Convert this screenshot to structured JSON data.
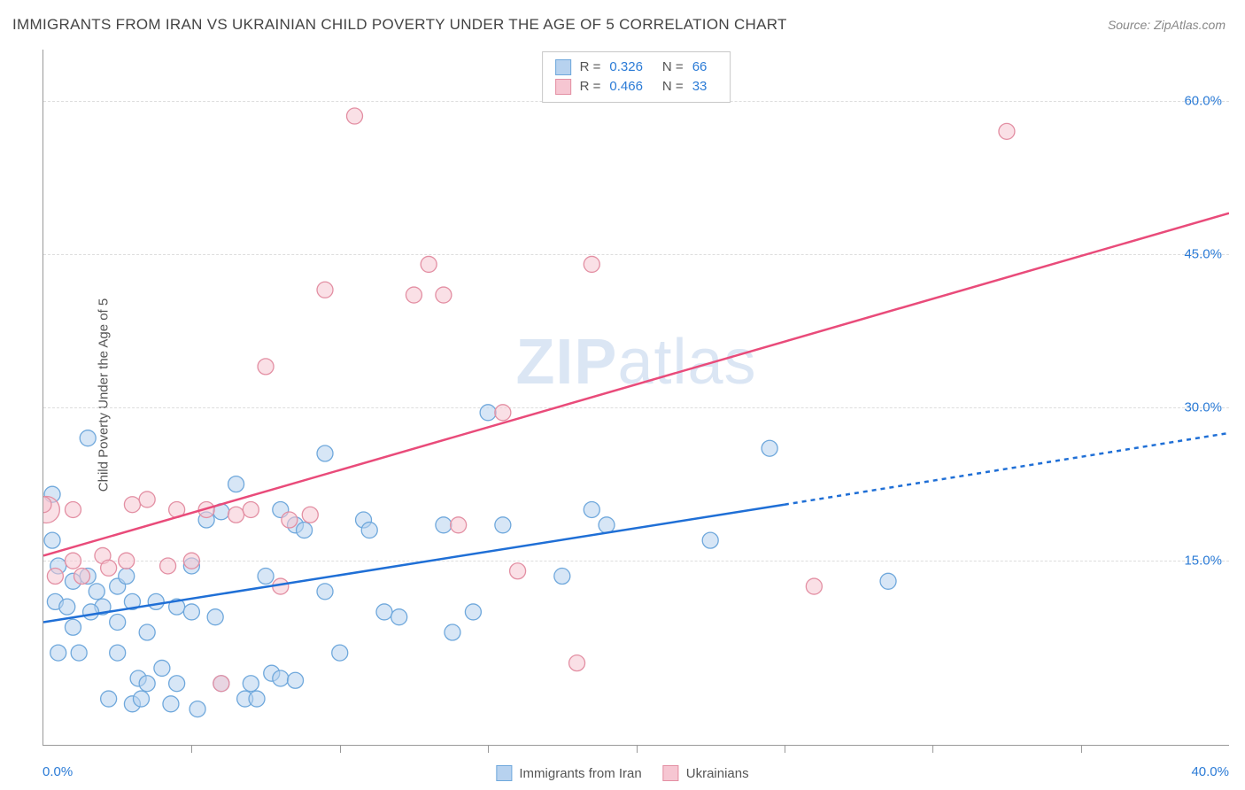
{
  "title": "IMMIGRANTS FROM IRAN VS UKRAINIAN CHILD POVERTY UNDER THE AGE OF 5 CORRELATION CHART",
  "source": "Source: ZipAtlas.com",
  "ylabel": "Child Poverty Under the Age of 5",
  "watermark_bold": "ZIP",
  "watermark_light": "atlas",
  "chart": {
    "type": "scatter",
    "xlim": [
      0,
      40
    ],
    "ylim": [
      -3,
      65
    ],
    "x_tick_step": 5,
    "y_gridlines": [
      15,
      30,
      45,
      60
    ],
    "x_min_label": "0.0%",
    "x_max_label": "40.0%",
    "y_tick_labels": [
      "15.0%",
      "30.0%",
      "45.0%",
      "60.0%"
    ],
    "axis_label_color": "#2b7bd6",
    "background_color": "#ffffff",
    "grid_color": "#dddddd",
    "axis_color": "#999999",
    "marker_radius": 9,
    "marker_radius_large": 15,
    "series": [
      {
        "name": "Immigrants from Iran",
        "fill": "#b7d2ef",
        "stroke": "#6fa8dc",
        "fill_opacity": 0.55,
        "stroke_width": 1.3,
        "trend": {
          "x1": 0,
          "y1": 9.0,
          "x2_solid": 25,
          "y2_solid": 20.5,
          "x2": 40,
          "y2": 27.5,
          "color": "#1f6fd6",
          "width": 2.5,
          "dash": "5,5"
        },
        "stats": {
          "R": "0.326",
          "N": "66"
        },
        "points": [
          [
            0.3,
            21.5
          ],
          [
            0.3,
            17.0
          ],
          [
            0.5,
            14.5
          ],
          [
            0.4,
            11.0
          ],
          [
            0.8,
            10.5
          ],
          [
            0.5,
            6.0
          ],
          [
            1.0,
            13.0
          ],
          [
            1.5,
            27.0
          ],
          [
            1.0,
            8.5
          ],
          [
            1.2,
            6.0
          ],
          [
            1.5,
            13.5
          ],
          [
            1.8,
            12.0
          ],
          [
            2.0,
            10.5
          ],
          [
            1.6,
            10.0
          ],
          [
            2.2,
            1.5
          ],
          [
            2.5,
            12.5
          ],
          [
            2.5,
            9.0
          ],
          [
            2.5,
            6.0
          ],
          [
            3.0,
            1.0
          ],
          [
            2.8,
            13.5
          ],
          [
            3.0,
            11.0
          ],
          [
            3.2,
            3.5
          ],
          [
            3.3,
            1.5
          ],
          [
            3.5,
            8.0
          ],
          [
            3.5,
            3.0
          ],
          [
            3.8,
            11.0
          ],
          [
            4.0,
            4.5
          ],
          [
            4.3,
            1.0
          ],
          [
            4.5,
            10.5
          ],
          [
            4.5,
            3.0
          ],
          [
            5.0,
            14.5
          ],
          [
            5.0,
            10.0
          ],
          [
            5.2,
            0.5
          ],
          [
            5.5,
            19.0
          ],
          [
            5.8,
            9.5
          ],
          [
            6.0,
            19.8
          ],
          [
            6.0,
            3.0
          ],
          [
            6.5,
            22.5
          ],
          [
            6.8,
            1.5
          ],
          [
            7.0,
            3.0
          ],
          [
            7.7,
            4.0
          ],
          [
            7.2,
            1.5
          ],
          [
            7.5,
            13.5
          ],
          [
            8.0,
            3.5
          ],
          [
            8.5,
            18.5
          ],
          [
            8.5,
            3.3
          ],
          [
            8.8,
            18.0
          ],
          [
            9.5,
            25.5
          ],
          [
            9.5,
            12.0
          ],
          [
            10.0,
            6.0
          ],
          [
            10.8,
            19.0
          ],
          [
            11.0,
            18.0
          ],
          [
            11.5,
            10.0
          ],
          [
            12.0,
            9.5
          ],
          [
            13.5,
            18.5
          ],
          [
            13.8,
            8.0
          ],
          [
            14.5,
            10.0
          ],
          [
            15.0,
            29.5
          ],
          [
            15.5,
            18.5
          ],
          [
            17.5,
            13.5
          ],
          [
            18.5,
            20.0
          ],
          [
            19.0,
            18.5
          ],
          [
            22.5,
            17.0
          ],
          [
            24.5,
            26.0
          ],
          [
            28.5,
            13.0
          ],
          [
            8.0,
            20.0
          ]
        ]
      },
      {
        "name": "Ukrainians",
        "fill": "#f6c6d2",
        "stroke": "#e38fa3",
        "fill_opacity": 0.55,
        "stroke_width": 1.3,
        "trend": {
          "x1": 0,
          "y1": 15.5,
          "x2_solid": 40,
          "y2_solid": 49.0,
          "x2": 40,
          "y2": 49.0,
          "color": "#e94b7a",
          "width": 2.5,
          "dash": null
        },
        "stats": {
          "R": "0.466",
          "N": "33"
        },
        "points": [
          [
            0.0,
            20.5
          ],
          [
            0.4,
            13.5
          ],
          [
            1.0,
            20.0
          ],
          [
            1.0,
            15.0
          ],
          [
            1.3,
            13.5
          ],
          [
            2.0,
            15.5
          ],
          [
            2.2,
            14.3
          ],
          [
            2.8,
            15.0
          ],
          [
            3.0,
            20.5
          ],
          [
            3.5,
            21.0
          ],
          [
            4.2,
            14.5
          ],
          [
            4.5,
            20.0
          ],
          [
            5.0,
            15.0
          ],
          [
            5.5,
            20.0
          ],
          [
            6.0,
            3.0
          ],
          [
            6.5,
            19.5
          ],
          [
            7.0,
            20.0
          ],
          [
            7.5,
            34.0
          ],
          [
            8.0,
            12.5
          ],
          [
            8.3,
            19.0
          ],
          [
            9.0,
            19.5
          ],
          [
            9.5,
            41.5
          ],
          [
            10.5,
            58.5
          ],
          [
            12.5,
            41.0
          ],
          [
            13.0,
            44.0
          ],
          [
            13.5,
            41.0
          ],
          [
            14.0,
            18.5
          ],
          [
            15.5,
            29.5
          ],
          [
            16.0,
            14.0
          ],
          [
            18.5,
            44.0
          ],
          [
            18.0,
            5.0
          ],
          [
            26.0,
            12.5
          ],
          [
            32.5,
            57.0
          ]
        ],
        "large_points": [
          [
            0.1,
            20.0
          ]
        ]
      }
    ]
  },
  "legend": {
    "stat_rows": [
      {
        "swatch_fill": "#b7d2ef",
        "swatch_stroke": "#6fa8dc",
        "R_label": "R =",
        "R": "0.326",
        "N_label": "N =",
        "N": "66"
      },
      {
        "swatch_fill": "#f6c6d2",
        "swatch_stroke": "#e38fa3",
        "R_label": "R =",
        "R": "0.466",
        "N_label": "N =",
        "N": "33"
      }
    ],
    "bottom": [
      {
        "swatch_fill": "#b7d2ef",
        "swatch_stroke": "#6fa8dc",
        "label": "Immigrants from Iran"
      },
      {
        "swatch_fill": "#f6c6d2",
        "swatch_stroke": "#e38fa3",
        "label": "Ukrainians"
      }
    ]
  }
}
